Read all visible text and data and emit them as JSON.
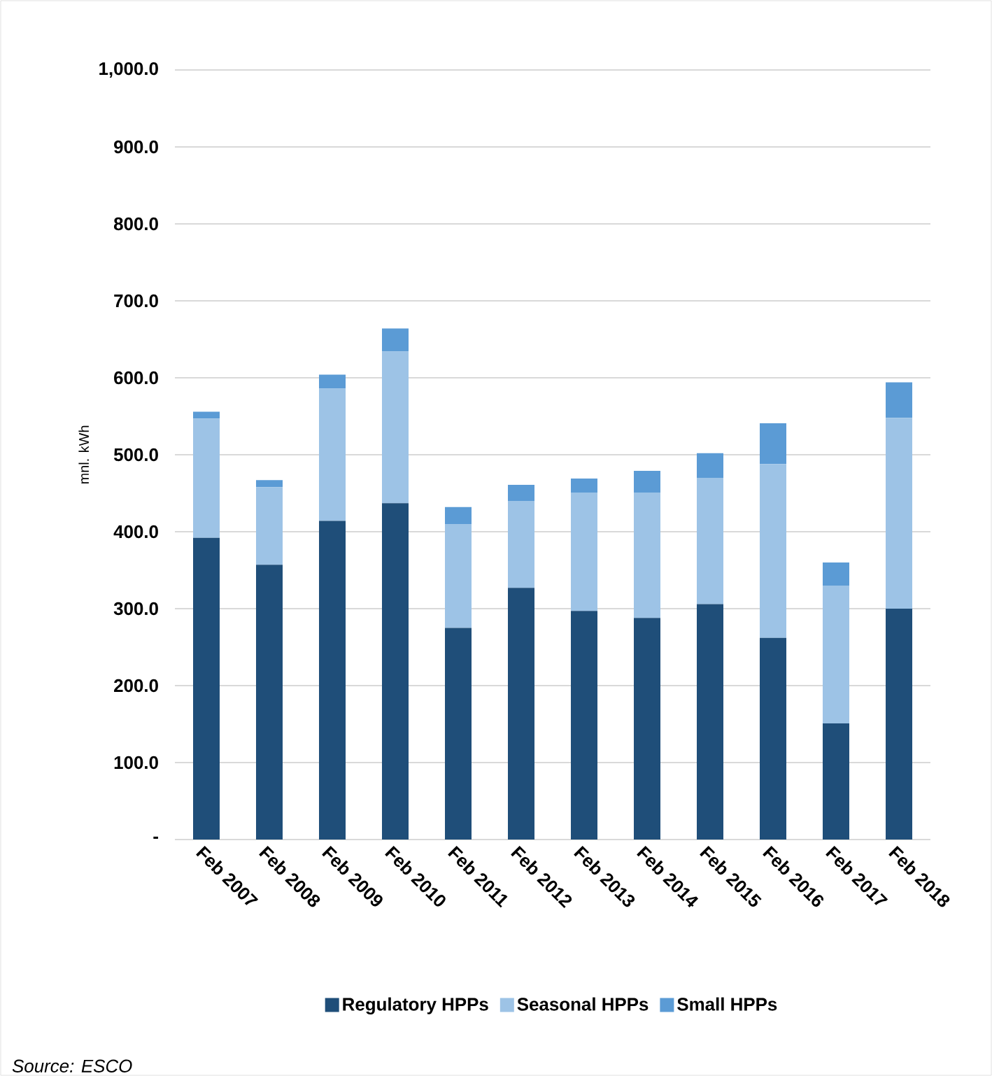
{
  "chart_data": {
    "type": "bar",
    "stacked": true,
    "ylabel": "mnl. kWh",
    "categories": [
      "Feb 2007",
      "Feb 2008",
      "Feb 2009",
      "Feb 2010",
      "Feb 2011",
      "Feb 2012",
      "Feb 2013",
      "Feb 2014",
      "Feb 2015",
      "Feb 2016",
      "Feb 2017",
      "Feb 2018"
    ],
    "series": [
      {
        "name": "Regulatory HPPs",
        "color": "#1f4e79",
        "values": [
          392,
          357,
          414,
          437,
          275,
          327,
          297,
          288,
          306,
          262,
          151,
          300
        ]
      },
      {
        "name": "Seasonal HPPs",
        "color": "#9dc3e6",
        "values": [
          155,
          101,
          172,
          197,
          135,
          113,
          154,
          163,
          164,
          226,
          179,
          248
        ]
      },
      {
        "name": "Small HPPs",
        "color": "#5b9bd5",
        "values": [
          9,
          9,
          18,
          30,
          22,
          21,
          18,
          28,
          32,
          53,
          30,
          46
        ]
      }
    ],
    "ylim": [
      0,
      1000
    ],
    "yticks": [
      {
        "value": 0,
        "label": "-"
      },
      {
        "value": 100,
        "label": "100.0"
      },
      {
        "value": 200,
        "label": "200.0"
      },
      {
        "value": 300,
        "label": "300.0"
      },
      {
        "value": 400,
        "label": "400.0"
      },
      {
        "value": 500,
        "label": "500.0"
      },
      {
        "value": 600,
        "label": "600.0"
      },
      {
        "value": 700,
        "label": "700.0"
      },
      {
        "value": 800,
        "label": "800.0"
      },
      {
        "value": 900,
        "label": "900.0"
      },
      {
        "value": 1000,
        "label": "1,000.0"
      }
    ],
    "grid": "y",
    "legend": "bottom",
    "annotations": [
      "Source: ESCO"
    ]
  }
}
